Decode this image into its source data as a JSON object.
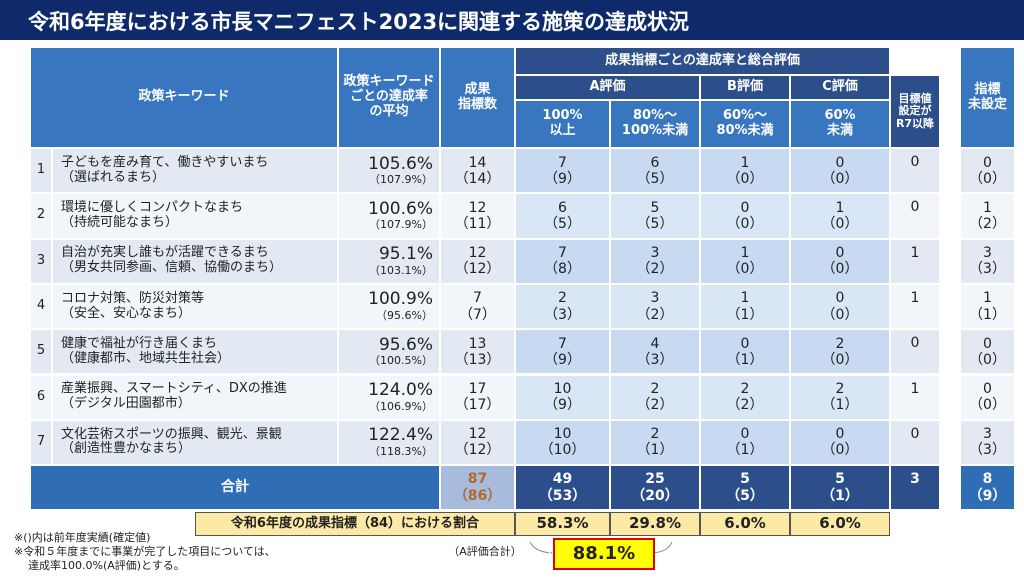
{
  "header": {
    "title": "令和6年度における市長マニフェスト2023に関連する施策の達成状況"
  },
  "table": {
    "head": {
      "keyword": "政策キーワード",
      "rate": [
        "政策キーワード",
        "ごとの達成率",
        "の平均"
      ],
      "count": [
        "成果",
        "指標数"
      ],
      "group": "成果指標ごとの達成率と総合評価",
      "a": "A評価",
      "b": "B評価",
      "c": "C評価",
      "a1": [
        "100%",
        "以上"
      ],
      "a2": [
        "80%～",
        "100%未満"
      ],
      "b1": [
        "60%～",
        "80%未満"
      ],
      "c1": [
        "60%",
        "未満"
      ],
      "r7": [
        "目標値",
        "設定が",
        "R7以降"
      ],
      "unset": [
        "指標",
        "未設定"
      ]
    },
    "rows": [
      {
        "no": "1",
        "name": "子どもを産み育て、働きやすいまち",
        "sub": "（選ばれるまち）",
        "rate": "105.6%",
        "rate_prev": "（107.9%）",
        "cells": [
          [
            "14",
            "（14）"
          ],
          [
            "7",
            "（9）"
          ],
          [
            "6",
            "（5）"
          ],
          [
            "1",
            "（0）"
          ],
          [
            "0",
            "（0）"
          ]
        ],
        "r7": "0",
        "unset": [
          "0",
          "（0）"
        ]
      },
      {
        "no": "2",
        "name": "環境に優しくコンパクトなまち",
        "sub": "（持続可能なまち）",
        "rate": "100.6%",
        "rate_prev": "（107.9%）",
        "cells": [
          [
            "12",
            "（11）"
          ],
          [
            "6",
            "（5）"
          ],
          [
            "5",
            "（5）"
          ],
          [
            "0",
            "（0）"
          ],
          [
            "1",
            "（0）"
          ]
        ],
        "r7": "0",
        "unset": [
          "1",
          "（2）"
        ]
      },
      {
        "no": "3",
        "name": "自治が充実し誰もが活躍できるまち",
        "sub": "（男女共同参画、信頼、協働のまち）",
        "rate": "95.1%",
        "rate_prev": "（103.1%）",
        "cells": [
          [
            "12",
            "（12）"
          ],
          [
            "7",
            "（8）"
          ],
          [
            "3",
            "（2）"
          ],
          [
            "1",
            "（0）"
          ],
          [
            "0",
            "（0）"
          ]
        ],
        "r7": "1",
        "unset": [
          "3",
          "（3）"
        ]
      },
      {
        "no": "4",
        "name": "コロナ対策、防災対策等",
        "sub": "（安全、安心なまち）",
        "rate": "100.9%",
        "rate_prev": "（95.6%）",
        "cells": [
          [
            "7",
            "（7）"
          ],
          [
            "2",
            "（3）"
          ],
          [
            "3",
            "（2）"
          ],
          [
            "1",
            "（1）"
          ],
          [
            "0",
            "（0）"
          ]
        ],
        "r7": "1",
        "unset": [
          "1",
          "（1）"
        ]
      },
      {
        "no": "5",
        "name": "健康で福祉が行き届くまち",
        "sub": "（健康都市、地域共生社会）",
        "rate": "95.6%",
        "rate_prev": "（100.5%）",
        "cells": [
          [
            "13",
            "（13）"
          ],
          [
            "7",
            "（9）"
          ],
          [
            "4",
            "（3）"
          ],
          [
            "0",
            "（1）"
          ],
          [
            "2",
            "（0）"
          ]
        ],
        "r7": "0",
        "unset": [
          "0",
          "（0）"
        ]
      },
      {
        "no": "6",
        "name": "産業振興、スマートシティ、DXの推進",
        "sub": "（デジタル田園都市）",
        "rate": "124.0%",
        "rate_prev": "（106.9%）",
        "cells": [
          [
            "17",
            "（17）"
          ],
          [
            "10",
            "（9）"
          ],
          [
            "2",
            "（2）"
          ],
          [
            "2",
            "（2）"
          ],
          [
            "2",
            "（1）"
          ]
        ],
        "r7": "1",
        "unset": [
          "0",
          "（0）"
        ]
      },
      {
        "no": "7",
        "name": "文化芸術スポーツの振興、観光、景観",
        "sub": "（創造性豊かなまち）",
        "rate": "122.4%",
        "rate_prev": "（118.3%）",
        "cells": [
          [
            "12",
            "（12）"
          ],
          [
            "10",
            "（10）"
          ],
          [
            "2",
            "（1）"
          ],
          [
            "0",
            "（1）"
          ],
          [
            "0",
            "（0）"
          ]
        ],
        "r7": "0",
        "unset": [
          "3",
          "（3）"
        ]
      }
    ],
    "total": {
      "label": "合計",
      "cells": [
        [
          "87",
          "（86）"
        ],
        [
          "49",
          "（53）"
        ],
        [
          "25",
          "（20）"
        ],
        [
          "5",
          "（5）"
        ],
        [
          "5",
          "（1）"
        ]
      ],
      "r7": "3",
      "unset": [
        "8",
        "（9）"
      ]
    },
    "ratio": {
      "label": "令和6年度の成果指標（84）における割合",
      "values": [
        "58.3%",
        "29.8%",
        "6.0%",
        "6.0%"
      ]
    },
    "a_total": {
      "label": "（A評価合計）",
      "value": "88.1%"
    }
  },
  "notes": [
    "※()内は前年度実績(確定値)",
    "※令和５年度までに事業が完了した項目については、",
    "達成率100.0%(A評価)とする。"
  ]
}
